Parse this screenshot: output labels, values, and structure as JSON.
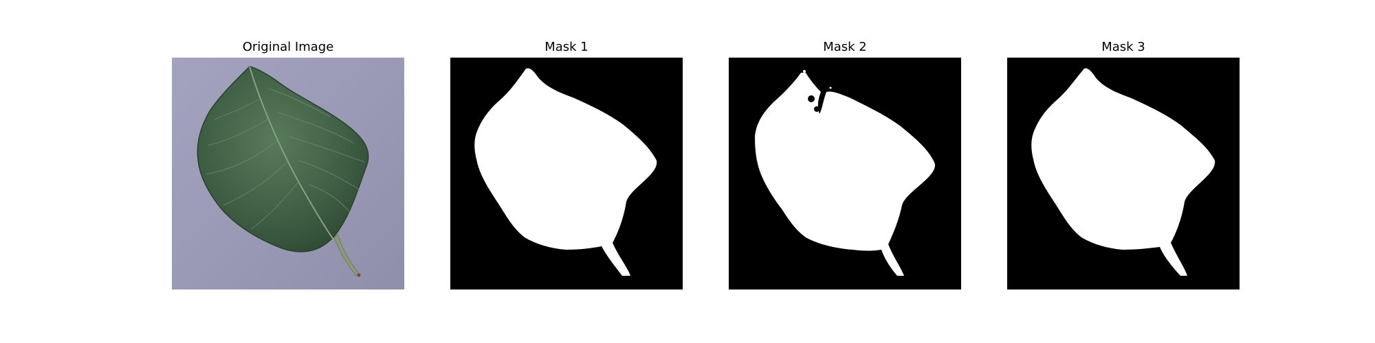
{
  "figure": {
    "panels": [
      {
        "title": "Original Image",
        "kind": "photo"
      },
      {
        "title": "Mask 1",
        "kind": "mask"
      },
      {
        "title": "Mask 2",
        "kind": "mask"
      },
      {
        "title": "Mask 3",
        "kind": "mask"
      }
    ],
    "colors": {
      "background": "#ffffff",
      "photo_background": "#9c9cb8",
      "leaf_dark": "#2f4a33",
      "leaf_mid": "#47684c",
      "leaf_light": "#6d8a6d",
      "vein": "#8da086",
      "stem": "#8b9b78",
      "mask_background": "#000000",
      "mask_foreground": "#ffffff"
    }
  }
}
